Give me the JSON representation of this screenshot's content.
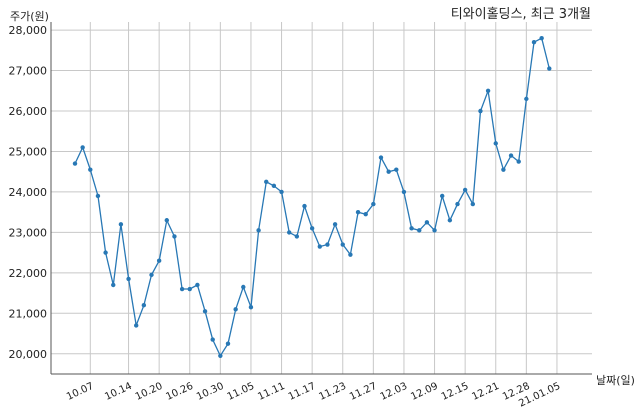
{
  "chart_data": {
    "type": "line",
    "title": "티와이홀딩스, 최근 3개월",
    "ylabel": "주가(원)",
    "xlabel": "날짜(일)",
    "ylim": [
      19500,
      28200
    ],
    "yticks": [
      20000,
      21000,
      22000,
      23000,
      24000,
      25000,
      26000,
      27000,
      28000
    ],
    "ytick_labels": [
      "20,000",
      "21,000",
      "22,000",
      "23,000",
      "24,000",
      "25,000",
      "26,000",
      "27,000",
      "28,000"
    ],
    "xticks": [
      {
        "index": 2,
        "label": "10.07"
      },
      {
        "index": 7,
        "label": "10.14"
      },
      {
        "index": 11,
        "label": "10.20"
      },
      {
        "index": 15,
        "label": "10.26"
      },
      {
        "index": 19,
        "label": "10.30"
      },
      {
        "index": 23,
        "label": "11.05"
      },
      {
        "index": 27,
        "label": "11.11"
      },
      {
        "index": 31,
        "label": "11.17"
      },
      {
        "index": 35,
        "label": "11.23"
      },
      {
        "index": 39,
        "label": "11.27"
      },
      {
        "index": 43,
        "label": "12.03"
      },
      {
        "index": 47,
        "label": "12.09"
      },
      {
        "index": 51,
        "label": "12.15"
      },
      {
        "index": 55,
        "label": "12.21"
      },
      {
        "index": 59,
        "label": "12.28"
      },
      {
        "index": 63,
        "label": "21.01.05"
      }
    ],
    "grid": true,
    "values": [
      24700,
      25100,
      24550,
      23900,
      22500,
      21700,
      23200,
      21850,
      20700,
      21200,
      21950,
      22300,
      23300,
      22900,
      21600,
      21600,
      21700,
      21050,
      20350,
      19950,
      20250,
      21100,
      21650,
      21150,
      23050,
      24250,
      24150,
      24000,
      23000,
      22900,
      23650,
      23100,
      22650,
      22700,
      23200,
      22700,
      22450,
      23500,
      23450,
      23700,
      24850,
      24500,
      24550,
      24000,
      23100,
      23050,
      23250,
      23050,
      23900,
      23300,
      23700,
      24050,
      23700,
      26000,
      26500,
      25200,
      24550,
      24900,
      24750,
      26300,
      27700,
      27800,
      27050
    ]
  }
}
